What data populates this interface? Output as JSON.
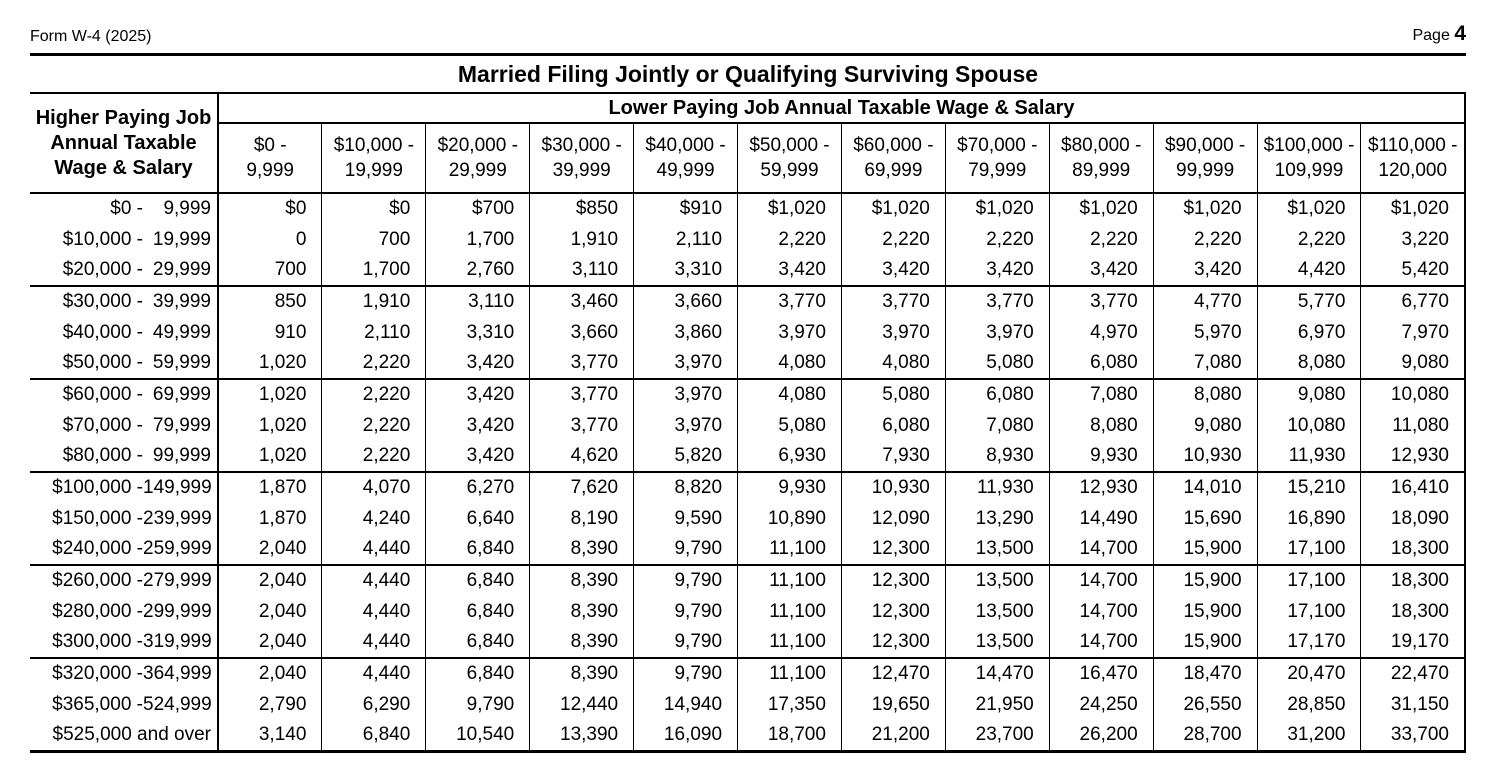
{
  "colors": {
    "ink": "#000000",
    "background": "#ffffff"
  },
  "page": {
    "form_label": "Form W-4 (2025)",
    "page_label": "Page",
    "page_number": "4"
  },
  "table": {
    "title": "Married Filing Jointly or Qualifying Surviving Spouse",
    "col_group_header": "Lower Paying Job Annual Taxable Wage & Salary",
    "row_group_header_lines": [
      "Higher Paying Job",
      "Annual Taxable",
      "Wage & Salary"
    ],
    "columns": [
      {
        "from": "$0 -",
        "to": "9,999"
      },
      {
        "from": "$10,000 -",
        "to": "19,999"
      },
      {
        "from": "$20,000 -",
        "to": "29,999"
      },
      {
        "from": "$30,000 -",
        "to": "39,999"
      },
      {
        "from": "$40,000 -",
        "to": "49,999"
      },
      {
        "from": "$50,000 -",
        "to": "59,999"
      },
      {
        "from": "$60,000 -",
        "to": "69,999"
      },
      {
        "from": "$70,000 -",
        "to": "79,999"
      },
      {
        "from": "$80,000 -",
        "to": "89,999"
      },
      {
        "from": "$90,000 -",
        "to": "99,999"
      },
      {
        "from": "$100,000 -",
        "to": "109,999"
      },
      {
        "from": "$110,000 -",
        "to": "120,000"
      }
    ],
    "rows": [
      {
        "label_from": "$0 -",
        "label_to": "9,999",
        "values": [
          "$0",
          "$0",
          "$700",
          "$850",
          "$910",
          "$1,020",
          "$1,020",
          "$1,020",
          "$1,020",
          "$1,020",
          "$1,020",
          "$1,020"
        ]
      },
      {
        "label_from": "$10,000 -",
        "label_to": "19,999",
        "values": [
          "0",
          "700",
          "1,700",
          "1,910",
          "2,110",
          "2,220",
          "2,220",
          "2,220",
          "2,220",
          "2,220",
          "2,220",
          "3,220"
        ]
      },
      {
        "label_from": "$20,000 -",
        "label_to": "29,999",
        "values": [
          "700",
          "1,700",
          "2,760",
          "3,110",
          "3,310",
          "3,420",
          "3,420",
          "3,420",
          "3,420",
          "3,420",
          "4,420",
          "5,420"
        ]
      },
      {
        "label_from": "$30,000 -",
        "label_to": "39,999",
        "values": [
          "850",
          "1,910",
          "3,110",
          "3,460",
          "3,660",
          "3,770",
          "3,770",
          "3,770",
          "3,770",
          "4,770",
          "5,770",
          "6,770"
        ]
      },
      {
        "label_from": "$40,000 -",
        "label_to": "49,999",
        "values": [
          "910",
          "2,110",
          "3,310",
          "3,660",
          "3,860",
          "3,970",
          "3,970",
          "3,970",
          "4,970",
          "5,970",
          "6,970",
          "7,970"
        ]
      },
      {
        "label_from": "$50,000 -",
        "label_to": "59,999",
        "values": [
          "1,020",
          "2,220",
          "3,420",
          "3,770",
          "3,970",
          "4,080",
          "4,080",
          "5,080",
          "6,080",
          "7,080",
          "8,080",
          "9,080"
        ]
      },
      {
        "label_from": "$60,000 -",
        "label_to": "69,999",
        "values": [
          "1,020",
          "2,220",
          "3,420",
          "3,770",
          "3,970",
          "4,080",
          "5,080",
          "6,080",
          "7,080",
          "8,080",
          "9,080",
          "10,080"
        ]
      },
      {
        "label_from": "$70,000 -",
        "label_to": "79,999",
        "values": [
          "1,020",
          "2,220",
          "3,420",
          "3,770",
          "3,970",
          "5,080",
          "6,080",
          "7,080",
          "8,080",
          "9,080",
          "10,080",
          "11,080"
        ]
      },
      {
        "label_from": "$80,000 -",
        "label_to": "99,999",
        "values": [
          "1,020",
          "2,220",
          "3,420",
          "4,620",
          "5,820",
          "6,930",
          "7,930",
          "8,930",
          "9,930",
          "10,930",
          "11,930",
          "12,930"
        ]
      },
      {
        "label_from": "$100,000 -",
        "label_to": "149,999",
        "values": [
          "1,870",
          "4,070",
          "6,270",
          "7,620",
          "8,820",
          "9,930",
          "10,930",
          "11,930",
          "12,930",
          "14,010",
          "15,210",
          "16,410"
        ]
      },
      {
        "label_from": "$150,000 -",
        "label_to": "239,999",
        "values": [
          "1,870",
          "4,240",
          "6,640",
          "8,190",
          "9,590",
          "10,890",
          "12,090",
          "13,290",
          "14,490",
          "15,690",
          "16,890",
          "18,090"
        ]
      },
      {
        "label_from": "$240,000 -",
        "label_to": "259,999",
        "values": [
          "2,040",
          "4,440",
          "6,840",
          "8,390",
          "9,790",
          "11,100",
          "12,300",
          "13,500",
          "14,700",
          "15,900",
          "17,100",
          "18,300"
        ]
      },
      {
        "label_from": "$260,000 -",
        "label_to": "279,999",
        "values": [
          "2,040",
          "4,440",
          "6,840",
          "8,390",
          "9,790",
          "11,100",
          "12,300",
          "13,500",
          "14,700",
          "15,900",
          "17,100",
          "18,300"
        ]
      },
      {
        "label_from": "$280,000 -",
        "label_to": "299,999",
        "values": [
          "2,040",
          "4,440",
          "6,840",
          "8,390",
          "9,790",
          "11,100",
          "12,300",
          "13,500",
          "14,700",
          "15,900",
          "17,100",
          "18,300"
        ]
      },
      {
        "label_from": "$300,000 -",
        "label_to": "319,999",
        "values": [
          "2,040",
          "4,440",
          "6,840",
          "8,390",
          "9,790",
          "11,100",
          "12,300",
          "13,500",
          "14,700",
          "15,900",
          "17,170",
          "19,170"
        ]
      },
      {
        "label_from": "$320,000 -",
        "label_to": "364,999",
        "values": [
          "2,040",
          "4,440",
          "6,840",
          "8,390",
          "9,790",
          "11,100",
          "12,470",
          "14,470",
          "16,470",
          "18,470",
          "20,470",
          "22,470"
        ]
      },
      {
        "label_from": "$365,000 -",
        "label_to": "524,999",
        "values": [
          "2,790",
          "6,290",
          "9,790",
          "12,440",
          "14,940",
          "17,350",
          "19,650",
          "21,950",
          "24,250",
          "26,550",
          "28,850",
          "31,150"
        ]
      },
      {
        "label_from": "$525,000 and over",
        "label_to": "",
        "values": [
          "3,140",
          "6,840",
          "10,540",
          "13,390",
          "16,090",
          "18,700",
          "21,200",
          "23,700",
          "26,200",
          "28,700",
          "31,200",
          "33,700"
        ]
      }
    ]
  }
}
